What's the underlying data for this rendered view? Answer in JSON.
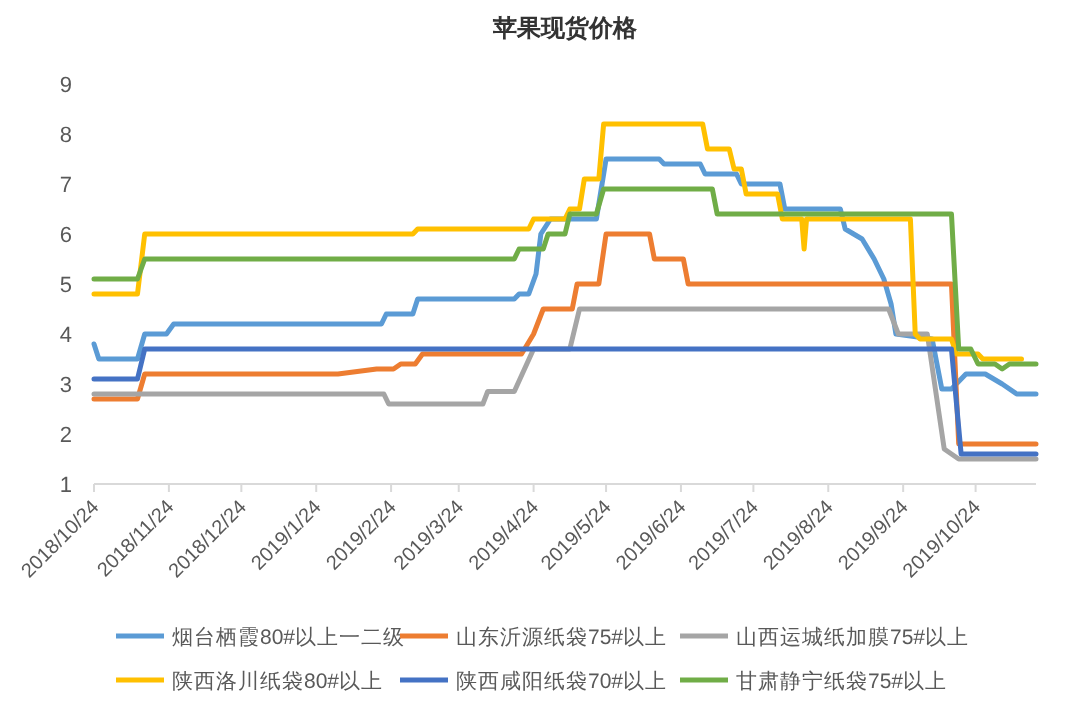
{
  "chart_data": {
    "type": "line",
    "title": "苹果现货价格",
    "legend": "bottom",
    "line_style": "solid",
    "xlim": [
      "2018-10-24",
      "2019-11-18"
    ],
    "ylim": [
      1,
      9
    ],
    "yticks": [
      1,
      2,
      3,
      4,
      5,
      6,
      7,
      8,
      9
    ],
    "xticks": [
      {
        "value": "2018-10-24",
        "label": "2018/10/24"
      },
      {
        "value": "2018-11-24",
        "label": "2018/11/24"
      },
      {
        "value": "2018-12-24",
        "label": "2018/12/24"
      },
      {
        "value": "2019-01-24",
        "label": "2019/1/24"
      },
      {
        "value": "2019-02-24",
        "label": "2019/2/24"
      },
      {
        "value": "2019-03-24",
        "label": "2019/3/24"
      },
      {
        "value": "2019-04-24",
        "label": "2019/4/24"
      },
      {
        "value": "2019-05-24",
        "label": "2019/5/24"
      },
      {
        "value": "2019-06-24",
        "label": "2019/6/24"
      },
      {
        "value": "2019-07-24",
        "label": "2019/7/24"
      },
      {
        "value": "2019-08-24",
        "label": "2019/8/24"
      },
      {
        "value": "2019-09-24",
        "label": "2019/9/24"
      },
      {
        "value": "2019-10-24",
        "label": "2019/10/24"
      }
    ],
    "series": [
      {
        "name": "烟台栖霞80#以上一二级",
        "color": "#5b9bd5",
        "x": [
          "2018-10-24",
          "2018-10-26",
          "2018-11-11",
          "2018-11-14",
          "2018-11-23",
          "2018-11-26",
          "2019-02-20",
          "2019-02-22",
          "2019-03-05",
          "2019-03-07",
          "2019-04-16",
          "2019-04-18",
          "2019-04-22",
          "2019-04-25",
          "2019-04-27",
          "2019-05-01",
          "2019-05-20",
          "2019-05-24",
          "2019-06-15",
          "2019-06-17",
          "2019-07-02",
          "2019-07-04",
          "2019-07-17",
          "2019-07-19",
          "2019-08-04",
          "2019-08-06",
          "2019-08-29",
          "2019-08-31",
          "2019-09-07",
          "2019-09-12",
          "2019-09-16",
          "2019-09-19",
          "2019-09-21",
          "2019-10-06",
          "2019-10-10",
          "2019-10-14",
          "2019-10-20",
          "2019-10-28",
          "2019-11-04",
          "2019-11-10",
          "2019-11-18"
        ],
        "values": [
          3.8,
          3.5,
          3.5,
          4.0,
          4.0,
          4.2,
          4.2,
          4.4,
          4.4,
          4.7,
          4.7,
          4.8,
          4.8,
          5.2,
          6.0,
          6.3,
          6.3,
          7.5,
          7.5,
          7.4,
          7.4,
          7.2,
          7.2,
          7.0,
          7.0,
          6.5,
          6.5,
          6.1,
          5.9,
          5.5,
          5.1,
          4.6,
          4.0,
          3.9,
          2.9,
          2.9,
          3.2,
          3.2,
          3.0,
          2.8,
          2.8
        ]
      },
      {
        "name": "山东沂源纸袋75#以上",
        "color": "#ed7d31",
        "x": [
          "2018-10-24",
          "2018-11-11",
          "2018-11-14",
          "2019-02-02",
          "2019-02-18",
          "2019-02-25",
          "2019-02-28",
          "2019-03-06",
          "2019-03-09",
          "2019-04-19",
          "2019-04-24",
          "2019-04-28",
          "2019-05-10",
          "2019-05-12",
          "2019-05-21",
          "2019-05-24",
          "2019-06-11",
          "2019-06-13",
          "2019-06-25",
          "2019-06-27",
          "2019-10-14",
          "2019-10-17",
          "2019-11-18"
        ],
        "values": [
          2.7,
          2.7,
          3.2,
          3.2,
          3.3,
          3.3,
          3.4,
          3.4,
          3.6,
          3.6,
          4.0,
          4.5,
          4.5,
          5.0,
          5.0,
          6.0,
          6.0,
          5.5,
          5.5,
          5.0,
          5.0,
          1.8,
          1.8
        ]
      },
      {
        "name": "山西运城纸加膜75#以上",
        "color": "#a5a5a5",
        "x": [
          "2018-10-24",
          "2019-02-21",
          "2019-02-23",
          "2019-04-03",
          "2019-04-05",
          "2019-04-16",
          "2019-04-24",
          "2019-05-09",
          "2019-05-13",
          "2019-09-18",
          "2019-09-22",
          "2019-10-04",
          "2019-10-11",
          "2019-10-17",
          "2019-11-18"
        ],
        "values": [
          2.8,
          2.8,
          2.6,
          2.6,
          2.85,
          2.85,
          3.7,
          3.7,
          4.5,
          4.5,
          4.0,
          4.0,
          1.7,
          1.5,
          1.5
        ]
      },
      {
        "name": "陕西洛川纸袋80#以上",
        "color": "#ffc000",
        "x": [
          "2018-10-24",
          "2018-11-11",
          "2018-11-14",
          "2019-03-05",
          "2019-03-07",
          "2019-04-22",
          "2019-04-24",
          "2019-05-07",
          "2019-05-09",
          "2019-05-13",
          "2019-05-15",
          "2019-05-21",
          "2019-05-23",
          "2019-07-03",
          "2019-07-05",
          "2019-07-14",
          "2019-07-16",
          "2019-07-19",
          "2019-07-21",
          "2019-08-03",
          "2019-08-05",
          "2019-08-13",
          "2019-08-14",
          "2019-08-15",
          "2019-09-27",
          "2019-09-29",
          "2019-10-01",
          "2019-10-14",
          "2019-10-16",
          "2019-10-25",
          "2019-10-27",
          "2019-11-12"
        ],
        "values": [
          4.8,
          4.8,
          6.0,
          6.0,
          6.1,
          6.1,
          6.3,
          6.3,
          6.5,
          6.5,
          7.1,
          7.1,
          8.2,
          8.2,
          7.7,
          7.7,
          7.3,
          7.3,
          6.8,
          6.8,
          6.3,
          6.3,
          5.7,
          6.3,
          6.3,
          4.0,
          3.9,
          3.9,
          3.6,
          3.6,
          3.5,
          3.5
        ]
      },
      {
        "name": "陕西咸阳纸袋70#以上",
        "color": "#4472c4",
        "x": [
          "2018-10-24",
          "2018-11-11",
          "2018-11-14",
          "2019-10-14",
          "2019-10-18",
          "2019-11-18"
        ],
        "values": [
          3.1,
          3.1,
          3.7,
          3.7,
          1.6,
          1.6
        ]
      },
      {
        "name": "甘肃静宁纸袋75#以上",
        "color": "#70ad47",
        "x": [
          "2018-10-24",
          "2018-11-11",
          "2018-11-14",
          "2019-04-16",
          "2019-04-18",
          "2019-04-28",
          "2019-04-30",
          "2019-05-07",
          "2019-05-09",
          "2019-05-20",
          "2019-05-23",
          "2019-07-07",
          "2019-07-09",
          "2019-10-14",
          "2019-10-17",
          "2019-10-22",
          "2019-10-25",
          "2019-11-01",
          "2019-11-04",
          "2019-11-07",
          "2019-11-18"
        ],
        "values": [
          5.1,
          5.1,
          5.5,
          5.5,
          5.7,
          5.7,
          6.0,
          6.0,
          6.4,
          6.4,
          6.9,
          6.9,
          6.4,
          6.4,
          3.7,
          3.7,
          3.4,
          3.4,
          3.3,
          3.4,
          3.4
        ]
      }
    ]
  }
}
